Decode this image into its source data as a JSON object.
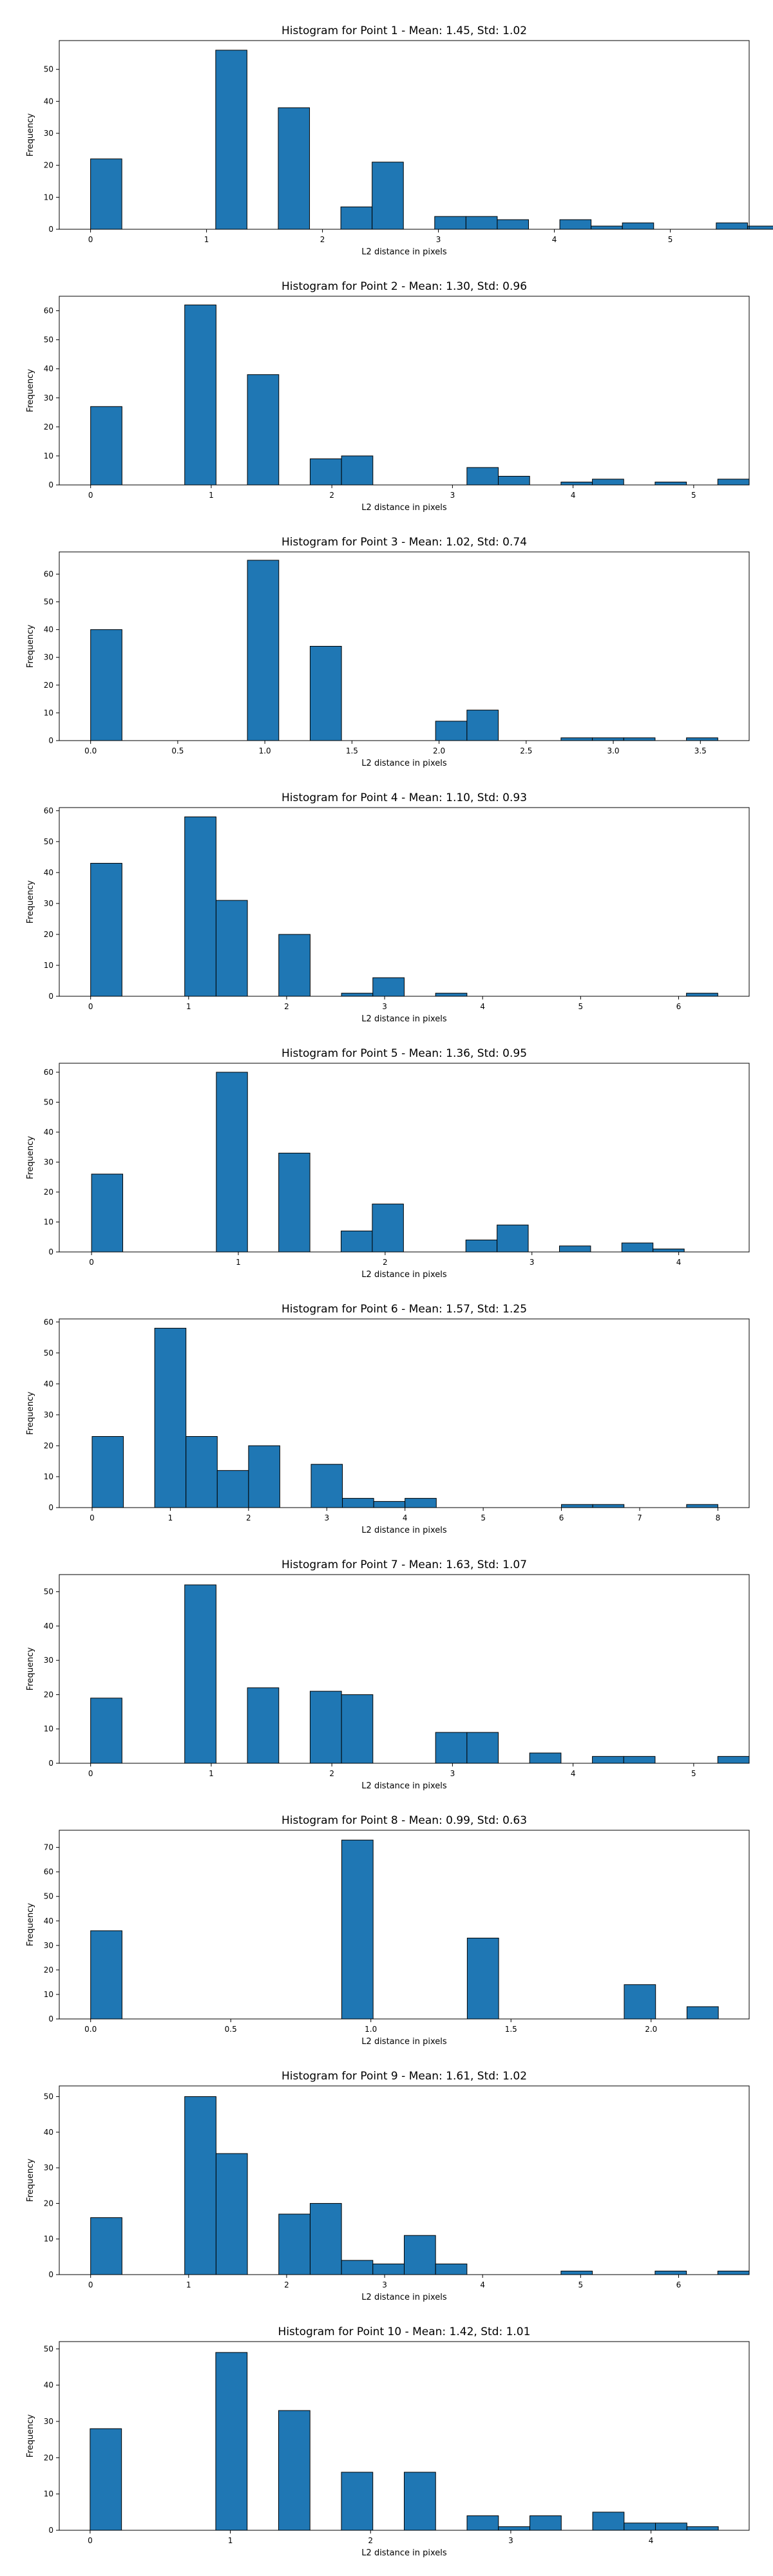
{
  "chart_data": [
    {
      "type": "bar",
      "title": "Histogram for Point 1 - Mean: 1.45, Std: 1.02",
      "xlabel": "L2 distance in pixels",
      "ylabel": "Frequency",
      "xlim": [
        -0.27,
        5.68
      ],
      "ylim": [
        0,
        59
      ],
      "xticks": [
        0,
        1,
        2,
        3,
        4,
        5
      ],
      "xtick_labels": [
        "0",
        "1",
        "2",
        "3",
        "4",
        "5"
      ],
      "yticks": [
        0,
        10,
        20,
        30,
        40,
        50
      ],
      "bin_start": 0,
      "bin_width": 0.2698,
      "counts": [
        22,
        0,
        0,
        0,
        56,
        0,
        38,
        0,
        7,
        21,
        0,
        4,
        4,
        3,
        0,
        3,
        1,
        2,
        0,
        0,
        2,
        1
      ],
      "grid": false
    },
    {
      "type": "bar",
      "title": "Histogram for Point 2 - Mean: 1.30, Std: 0.96",
      "xlabel": "L2 distance in pixels",
      "ylabel": "Frequency",
      "xlim": [
        -0.26,
        5.46
      ],
      "ylim": [
        0,
        65
      ],
      "xticks": [
        0,
        1,
        2,
        3,
        4,
        5
      ],
      "xtick_labels": [
        "0",
        "1",
        "2",
        "3",
        "4",
        "5"
      ],
      "yticks": [
        0,
        10,
        20,
        30,
        40,
        50,
        60
      ],
      "bin_start": 0,
      "bin_width": 0.26,
      "counts": [
        27,
        0,
        0,
        62,
        0,
        38,
        0,
        9,
        10,
        0,
        0,
        0,
        6,
        3,
        0,
        1,
        2,
        0,
        1,
        0,
        2
      ],
      "grid": false
    },
    {
      "type": "bar",
      "title": "Histogram for Point 3 - Mean: 1.02, Std: 0.74",
      "xlabel": "L2 distance in pixels",
      "ylabel": "Frequency",
      "xlim": [
        -0.18,
        3.78
      ],
      "ylim": [
        0,
        68
      ],
      "xticks": [
        0.0,
        0.5,
        1.0,
        1.5,
        2.0,
        2.5,
        3.0,
        3.5
      ],
      "xtick_labels": [
        "0.0",
        "0.5",
        "1.0",
        "1.5",
        "2.0",
        "2.5",
        "3.0",
        "3.5"
      ],
      "yticks": [
        0,
        10,
        20,
        30,
        40,
        50,
        60
      ],
      "bin_start": 0,
      "bin_width": 0.18,
      "counts": [
        40,
        0,
        0,
        0,
        0,
        65,
        0,
        34,
        0,
        0,
        0,
        7,
        11,
        0,
        0,
        1,
        1,
        1,
        0,
        1
      ],
      "grid": false
    },
    {
      "type": "bar",
      "title": "Histogram for Point 4 - Mean: 1.10, Std: 0.93",
      "xlabel": "L2 distance in pixels",
      "ylabel": "Frequency",
      "xlim": [
        -0.32,
        6.72
      ],
      "ylim": [
        0,
        61
      ],
      "xticks": [
        0,
        1,
        2,
        3,
        4,
        5,
        6
      ],
      "xtick_labels": [
        "0",
        "1",
        "2",
        "3",
        "4",
        "5",
        "6"
      ],
      "yticks": [
        0,
        10,
        20,
        30,
        40,
        50,
        60
      ],
      "bin_start": 0,
      "bin_width": 0.32,
      "counts": [
        43,
        0,
        0,
        58,
        31,
        0,
        20,
        0,
        1,
        6,
        0,
        1,
        0,
        0,
        0,
        0,
        0,
        0,
        0,
        1
      ],
      "grid": false
    },
    {
      "type": "bar",
      "title": "Histogram for Point 5 - Mean: 1.36, Std: 0.95",
      "xlabel": "L2 distance in pixels",
      "ylabel": "Frequency",
      "xlim": [
        -0.22,
        4.48
      ],
      "ylim": [
        0,
        63
      ],
      "xticks": [
        0,
        1,
        2,
        3,
        4
      ],
      "xtick_labels": [
        "0",
        "1",
        "2",
        "3",
        "4"
      ],
      "yticks": [
        0,
        10,
        20,
        30,
        40,
        50,
        60
      ],
      "bin_start": 0,
      "bin_width": 0.2125,
      "counts": [
        26,
        0,
        0,
        0,
        60,
        0,
        33,
        0,
        7,
        16,
        0,
        0,
        4,
        9,
        0,
        2,
        0,
        3,
        1
      ],
      "grid": false
    },
    {
      "type": "bar",
      "title": "Histogram for Point 6 - Mean: 1.57, Std: 1.25",
      "xlabel": "L2 distance in pixels",
      "ylabel": "Frequency",
      "xlim": [
        -0.42,
        8.4
      ],
      "ylim": [
        0,
        61
      ],
      "xticks": [
        0,
        1,
        2,
        3,
        4,
        5,
        6,
        7,
        8
      ],
      "xtick_labels": [
        "0",
        "1",
        "2",
        "3",
        "4",
        "5",
        "6",
        "7",
        "8"
      ],
      "yticks": [
        0,
        10,
        20,
        30,
        40,
        50,
        60
      ],
      "bin_start": 0,
      "bin_width": 0.4,
      "counts": [
        23,
        0,
        58,
        23,
        12,
        20,
        0,
        14,
        3,
        2,
        3,
        0,
        0,
        0,
        0,
        1,
        1,
        0,
        0,
        1
      ],
      "grid": false
    },
    {
      "type": "bar",
      "title": "Histogram for Point 7 - Mean: 1.63, Std: 1.07",
      "xlabel": "L2 distance in pixels",
      "ylabel": "Frequency",
      "xlim": [
        -0.26,
        5.46
      ],
      "ylim": [
        0,
        55
      ],
      "xticks": [
        0,
        1,
        2,
        3,
        4,
        5
      ],
      "xtick_labels": [
        "0",
        "1",
        "2",
        "3",
        "4",
        "5"
      ],
      "yticks": [
        0,
        10,
        20,
        30,
        40,
        50
      ],
      "bin_start": 0,
      "bin_width": 0.26,
      "counts": [
        19,
        0,
        0,
        52,
        0,
        22,
        0,
        21,
        20,
        0,
        0,
        9,
        9,
        0,
        3,
        0,
        2,
        2,
        0,
        0,
        2
      ],
      "grid": false
    },
    {
      "type": "bar",
      "title": "Histogram for Point 8 - Mean: 0.99, Std: 0.63",
      "xlabel": "L2 distance in pixels",
      "ylabel": "Frequency",
      "xlim": [
        -0.112,
        2.35
      ],
      "ylim": [
        0,
        77
      ],
      "xticks": [
        0.0,
        0.5,
        1.0,
        1.5,
        2.0
      ],
      "xtick_labels": [
        "0.0",
        "0.5",
        "1.0",
        "1.5",
        "2.0"
      ],
      "yticks": [
        0,
        10,
        20,
        30,
        40,
        50,
        60,
        70
      ],
      "bin_start": 0,
      "bin_width": 0.112,
      "counts": [
        36,
        0,
        0,
        0,
        0,
        0,
        0,
        0,
        73,
        0,
        0,
        0,
        33,
        0,
        0,
        0,
        0,
        14,
        0,
        5
      ],
      "grid": false
    },
    {
      "type": "bar",
      "title": "Histogram for Point 9 - Mean: 1.61, Std: 1.02",
      "xlabel": "L2 distance in pixels",
      "ylabel": "Frequency",
      "xlim": [
        -0.32,
        6.72
      ],
      "ylim": [
        0,
        53
      ],
      "xticks": [
        0,
        1,
        2,
        3,
        4,
        5,
        6
      ],
      "xtick_labels": [
        "0",
        "1",
        "2",
        "3",
        "4",
        "5",
        "6"
      ],
      "yticks": [
        0,
        10,
        20,
        30,
        40,
        50
      ],
      "bin_start": 0,
      "bin_width": 0.32,
      "counts": [
        16,
        0,
        0,
        50,
        34,
        0,
        17,
        20,
        4,
        3,
        11,
        3,
        0,
        0,
        0,
        1,
        0,
        0,
        1,
        0,
        1
      ],
      "grid": false
    },
    {
      "type": "bar",
      "title": "Histogram for Point 10 - Mean: 1.42, Std: 1.01",
      "xlabel": "L2 distance in pixels",
      "ylabel": "Frequency",
      "xlim": [
        -0.22,
        4.7
      ],
      "ylim": [
        0,
        52
      ],
      "xticks": [
        0,
        1,
        2,
        3,
        4
      ],
      "xtick_labels": [
        "0",
        "1",
        "2",
        "3",
        "4"
      ],
      "yticks": [
        0,
        10,
        20,
        30,
        40,
        50
      ],
      "bin_start": 0,
      "bin_width": 0.224,
      "counts": [
        28,
        0,
        0,
        0,
        49,
        0,
        33,
        0,
        16,
        0,
        16,
        0,
        4,
        1,
        4,
        0,
        5,
        2,
        2,
        1
      ],
      "grid": false
    }
  ]
}
